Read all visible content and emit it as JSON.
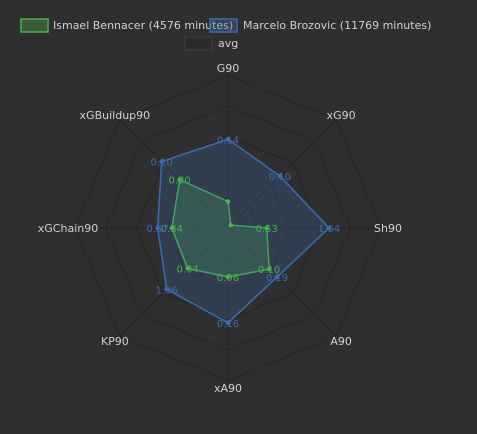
{
  "chart_data": {
    "type": "radar",
    "axes": [
      "G90",
      "xG90",
      "Sh90",
      "A90",
      "xA90",
      "KP90",
      "xGChain90",
      "xGBuildup90"
    ],
    "legend": [
      "Ismael Bennacer (4576 minutes)",
      "Marcelo Brozovic (11769 minutes)",
      "avg"
    ],
    "legend_position": "top",
    "series": [
      {
        "name": "Ismael Bennacer (4576 minutes)",
        "color": "#4caf50",
        "scaled": [
          0.26,
          0.04,
          0.38,
          0.57,
          0.48,
          0.56,
          0.55,
          0.67
        ],
        "labels": [
          null,
          null,
          "0.53",
          "0.10",
          "0.06",
          "0.94",
          "0.34",
          "0.30"
        ]
      },
      {
        "name": "Marcelo Brozovic (11769 minutes)",
        "color": "#3b6cb0",
        "scaled": [
          0.87,
          0.72,
          0.99,
          0.68,
          0.93,
          0.85,
          0.69,
          0.92
        ],
        "labels": [
          "0.14",
          "0.10",
          "1.64",
          "0.19",
          "0.16",
          "1.96",
          "0.57",
          "0.10"
        ]
      }
    ],
    "grid": true,
    "grid_levels": 5
  }
}
